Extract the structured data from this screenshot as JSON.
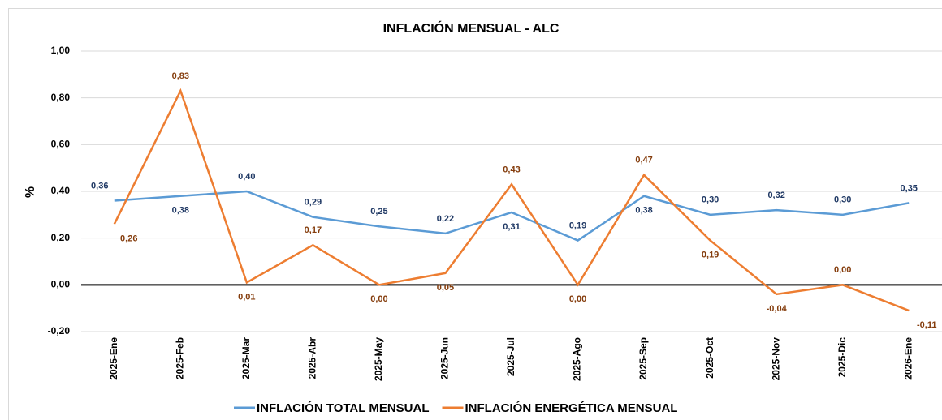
{
  "chart_data": {
    "type": "line",
    "title": "INFLACIÓN MENSUAL - ALC",
    "y_label": "%",
    "categories": [
      "2025-Ene",
      "2025-Feb",
      "2025-Mar",
      "2025-Abr",
      "2025-May",
      "2025-Jun",
      "2025-Jul",
      "2025-Ago",
      "2025-Sep",
      "2025-Oct",
      "2025-Nov",
      "2025-Dic",
      "2026-Ene"
    ],
    "series": [
      {
        "name": "INFLACIÓN TOTAL MENSUAL",
        "color": "#5b9bd5",
        "label_color": "#1f3864",
        "values": [
          0.36,
          0.38,
          0.4,
          0.29,
          0.25,
          0.22,
          0.31,
          0.19,
          0.38,
          0.3,
          0.32,
          0.3,
          0.35
        ],
        "value_labels": [
          "0,36",
          "0,38",
          "0,40",
          "0,29",
          "0,25",
          "0,22",
          "0,31",
          "0,19",
          "0,38",
          "0,30",
          "0,32",
          "0,30",
          "0,35"
        ]
      },
      {
        "name": "INFLACIÓN ENERGÉTICA MENSUAL",
        "color": "#ed7d31",
        "label_color": "#843c0c",
        "values": [
          0.26,
          0.83,
          0.01,
          0.17,
          0.0,
          0.05,
          0.43,
          0.0,
          0.47,
          0.19,
          -0.04,
          0.0,
          -0.11
        ],
        "value_labels": [
          "0,26",
          "0,83",
          "0,01",
          "0,17",
          "0,00",
          "0,05",
          "0,43",
          "0,00",
          "0,47",
          "0,19",
          "-0,04",
          "0,00",
          "-0,11"
        ]
      }
    ],
    "ylim": [
      -0.2,
      1.0
    ],
    "yticks": [
      {
        "value": -0.2,
        "label": "-0,20"
      },
      {
        "value": 0,
        "label": "0,00"
      },
      {
        "value": 0.2,
        "label": "0,20"
      },
      {
        "value": 0.4,
        "label": "0,40"
      },
      {
        "value": 0.6,
        "label": "0,60"
      },
      {
        "value": 0.8,
        "label": "0,80"
      },
      {
        "value": 1.0,
        "label": "1,00"
      }
    ],
    "grid": true,
    "legend": "bottom"
  }
}
